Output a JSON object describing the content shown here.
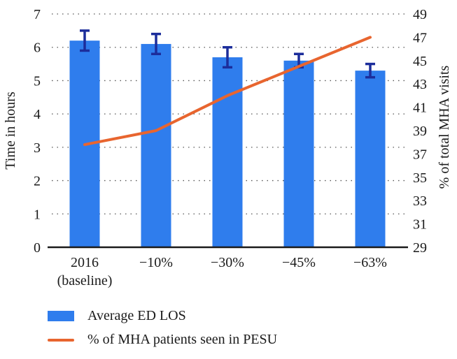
{
  "chart_data": {
    "type": "bar+line",
    "categories": [
      [
        "2016",
        "(baseline)"
      ],
      [
        "−10%"
      ],
      [
        "−30%"
      ],
      [
        "−45%"
      ],
      [
        "−63%"
      ]
    ],
    "series": [
      {
        "name": "Average ED LOS",
        "type": "bar",
        "axis": "left",
        "color": "#2f7ded",
        "values": [
          6.2,
          6.1,
          5.7,
          5.6,
          5.3
        ],
        "error": [
          0.3,
          0.3,
          0.3,
          0.2,
          0.2
        ],
        "error_color": "#1c2d9b"
      },
      {
        "name": "% of MHA patients seen in PESU",
        "type": "line",
        "axis": "right",
        "color": "#e8652f",
        "values": [
          37.8,
          39.0,
          42.0,
          44.5,
          47.0
        ]
      }
    ],
    "left_axis": {
      "label": "Time in hours",
      "min": 0,
      "max": 7,
      "ticks": [
        0,
        1,
        2,
        3,
        4,
        5,
        6,
        7
      ]
    },
    "right_axis": {
      "label": "% of total MHA visits",
      "min": 29,
      "max": 49,
      "ticks": [
        29,
        31,
        33,
        35,
        37,
        39,
        41,
        43,
        45,
        47,
        49
      ]
    },
    "grid": {
      "style": "dotted-horizontal",
      "color": "#555555"
    },
    "axis_line_color": "#1a1a1a",
    "legend_position": "bottom-left",
    "title": ""
  }
}
